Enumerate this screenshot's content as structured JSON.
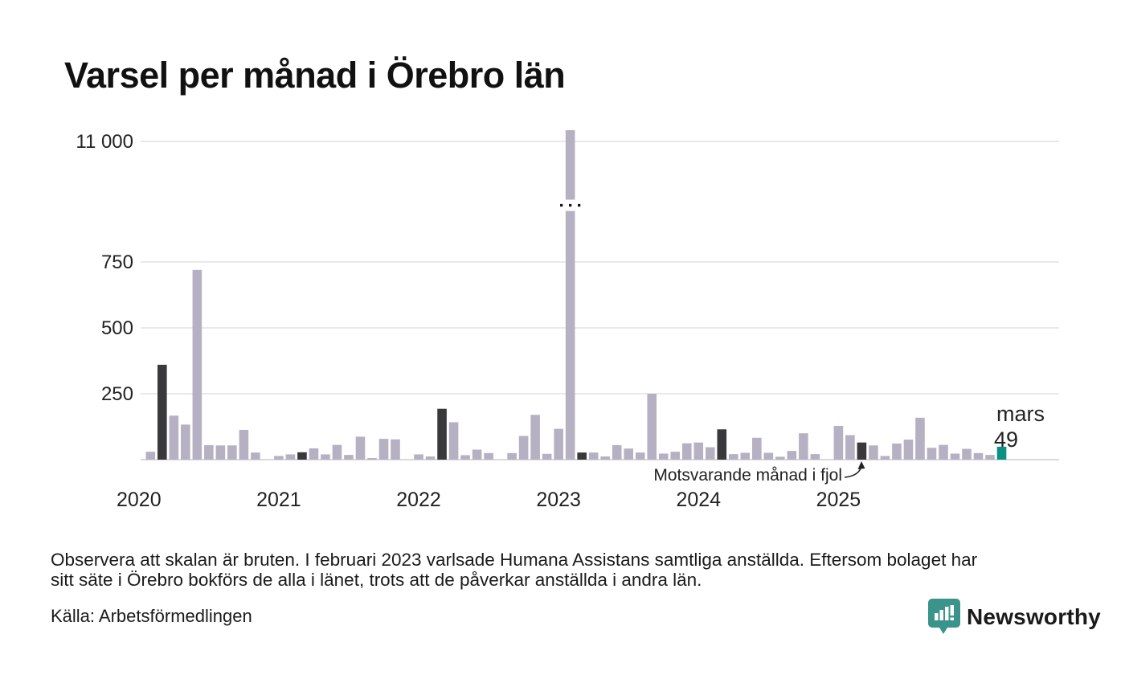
{
  "title": "Varsel per månad i Örebro län",
  "chart_data": {
    "type": "bar",
    "title": "Varsel per månad i Örebro län",
    "broken_scale": true,
    "y_axis": {
      "tick_labels": [
        "250",
        "500",
        "750",
        "11 000"
      ],
      "tick_values": [
        250,
        500,
        750,
        11000
      ]
    },
    "x_axis": {
      "tick_labels": [
        "2020",
        "2021",
        "2022",
        "2023",
        "2024",
        "2025"
      ]
    },
    "annotation": {
      "text": "Motsvarande månad i fjol",
      "target_month": "2025-03"
    },
    "current_label": {
      "text": "mars",
      "value": "49"
    },
    "series": [
      {
        "month": "2020-02",
        "value": 30,
        "type": "normal"
      },
      {
        "month": "2020-03",
        "value": 360,
        "type": "same-month"
      },
      {
        "month": "2020-04",
        "value": 167,
        "type": "normal"
      },
      {
        "month": "2020-05",
        "value": 133,
        "type": "normal"
      },
      {
        "month": "2020-06",
        "value": 720,
        "type": "normal"
      },
      {
        "month": "2020-07",
        "value": 55,
        "type": "normal"
      },
      {
        "month": "2020-08",
        "value": 54,
        "type": "normal"
      },
      {
        "month": "2020-09",
        "value": 54,
        "type": "normal"
      },
      {
        "month": "2020-10",
        "value": 113,
        "type": "normal"
      },
      {
        "month": "2020-11",
        "value": 27,
        "type": "normal"
      },
      {
        "month": "2020-12",
        "value": 0,
        "type": "normal"
      },
      {
        "month": "2021-01",
        "value": 14,
        "type": "normal"
      },
      {
        "month": "2021-02",
        "value": 20,
        "type": "normal"
      },
      {
        "month": "2021-03",
        "value": 28,
        "type": "same-month"
      },
      {
        "month": "2021-04",
        "value": 43,
        "type": "normal"
      },
      {
        "month": "2021-05",
        "value": 20,
        "type": "normal"
      },
      {
        "month": "2021-06",
        "value": 56,
        "type": "normal"
      },
      {
        "month": "2021-07",
        "value": 18,
        "type": "normal"
      },
      {
        "month": "2021-08",
        "value": 87,
        "type": "normal"
      },
      {
        "month": "2021-09",
        "value": 6,
        "type": "normal"
      },
      {
        "month": "2021-10",
        "value": 79,
        "type": "normal"
      },
      {
        "month": "2021-11",
        "value": 77,
        "type": "normal"
      },
      {
        "month": "2021-12",
        "value": 0,
        "type": "normal"
      },
      {
        "month": "2022-01",
        "value": 20,
        "type": "normal"
      },
      {
        "month": "2022-02",
        "value": 12,
        "type": "normal"
      },
      {
        "month": "2022-03",
        "value": 193,
        "type": "same-month"
      },
      {
        "month": "2022-04",
        "value": 142,
        "type": "normal"
      },
      {
        "month": "2022-05",
        "value": 17,
        "type": "normal"
      },
      {
        "month": "2022-06",
        "value": 38,
        "type": "normal"
      },
      {
        "month": "2022-07",
        "value": 25,
        "type": "normal"
      },
      {
        "month": "2022-08",
        "value": 0,
        "type": "normal"
      },
      {
        "month": "2022-09",
        "value": 25,
        "type": "normal"
      },
      {
        "month": "2022-10",
        "value": 90,
        "type": "normal"
      },
      {
        "month": "2022-11",
        "value": 170,
        "type": "normal"
      },
      {
        "month": "2022-12",
        "value": 22,
        "type": "normal"
      },
      {
        "month": "2023-01",
        "value": 117,
        "type": "normal"
      },
      {
        "month": "2023-02",
        "value": 11200,
        "type": "broken"
      },
      {
        "month": "2023-03",
        "value": 27,
        "type": "same-month"
      },
      {
        "month": "2023-04",
        "value": 27,
        "type": "normal"
      },
      {
        "month": "2023-05",
        "value": 12,
        "type": "normal"
      },
      {
        "month": "2023-06",
        "value": 55,
        "type": "normal"
      },
      {
        "month": "2023-07",
        "value": 42,
        "type": "normal"
      },
      {
        "month": "2023-08",
        "value": 27,
        "type": "normal"
      },
      {
        "month": "2023-09",
        "value": 250,
        "type": "normal"
      },
      {
        "month": "2023-10",
        "value": 23,
        "type": "normal"
      },
      {
        "month": "2023-11",
        "value": 30,
        "type": "normal"
      },
      {
        "month": "2023-12",
        "value": 62,
        "type": "normal"
      },
      {
        "month": "2024-01",
        "value": 65,
        "type": "normal"
      },
      {
        "month": "2024-02",
        "value": 47,
        "type": "normal"
      },
      {
        "month": "2024-03",
        "value": 115,
        "type": "same-month"
      },
      {
        "month": "2024-04",
        "value": 21,
        "type": "normal"
      },
      {
        "month": "2024-05",
        "value": 26,
        "type": "normal"
      },
      {
        "month": "2024-06",
        "value": 83,
        "type": "normal"
      },
      {
        "month": "2024-07",
        "value": 26,
        "type": "normal"
      },
      {
        "month": "2024-08",
        "value": 11,
        "type": "normal"
      },
      {
        "month": "2024-09",
        "value": 33,
        "type": "normal"
      },
      {
        "month": "2024-10",
        "value": 100,
        "type": "normal"
      },
      {
        "month": "2024-11",
        "value": 21,
        "type": "normal"
      },
      {
        "month": "2024-12",
        "value": 0,
        "type": "normal"
      },
      {
        "month": "2025-01",
        "value": 128,
        "type": "normal"
      },
      {
        "month": "2025-02",
        "value": 93,
        "type": "normal"
      },
      {
        "month": "2025-03",
        "value": 65,
        "type": "same-month"
      },
      {
        "month": "2025-04",
        "value": 54,
        "type": "normal"
      },
      {
        "month": "2025-05",
        "value": 14,
        "type": "normal"
      },
      {
        "month": "2025-06",
        "value": 61,
        "type": "normal"
      },
      {
        "month": "2025-07",
        "value": 76,
        "type": "normal"
      },
      {
        "month": "2025-08",
        "value": 159,
        "type": "normal"
      },
      {
        "month": "2025-09",
        "value": 45,
        "type": "normal"
      },
      {
        "month": "2025-10",
        "value": 56,
        "type": "normal"
      },
      {
        "month": "2025-11",
        "value": 23,
        "type": "normal"
      },
      {
        "month": "2025-12",
        "value": 41,
        "type": "normal"
      },
      {
        "month": "2026-01",
        "value": 25,
        "type": "normal"
      },
      {
        "month": "2026-02",
        "value": 18,
        "type": "normal"
      },
      {
        "month": "2026-03",
        "value": 49,
        "type": "current"
      }
    ]
  },
  "colors": {
    "bar_normal": "#b6b1c2",
    "bar_dark": "#39383b",
    "bar_teal": "#0b9083",
    "gridline": "#e9e9ec",
    "baseline": "#d9d9de",
    "logo_teal": "#3a948b"
  },
  "footer": {
    "note_lines": [
      "Observera att skalan är bruten. I februari 2023 varlsade Humana Assistans samtliga anställda. Eftersom bolaget har",
      "sitt säte i Örebro bokförs de alla i länet, trots att de påverkar anställda i andra län."
    ],
    "source": "Källa: Arbetsförmedlingen",
    "logo_text": "Newsworthy"
  }
}
